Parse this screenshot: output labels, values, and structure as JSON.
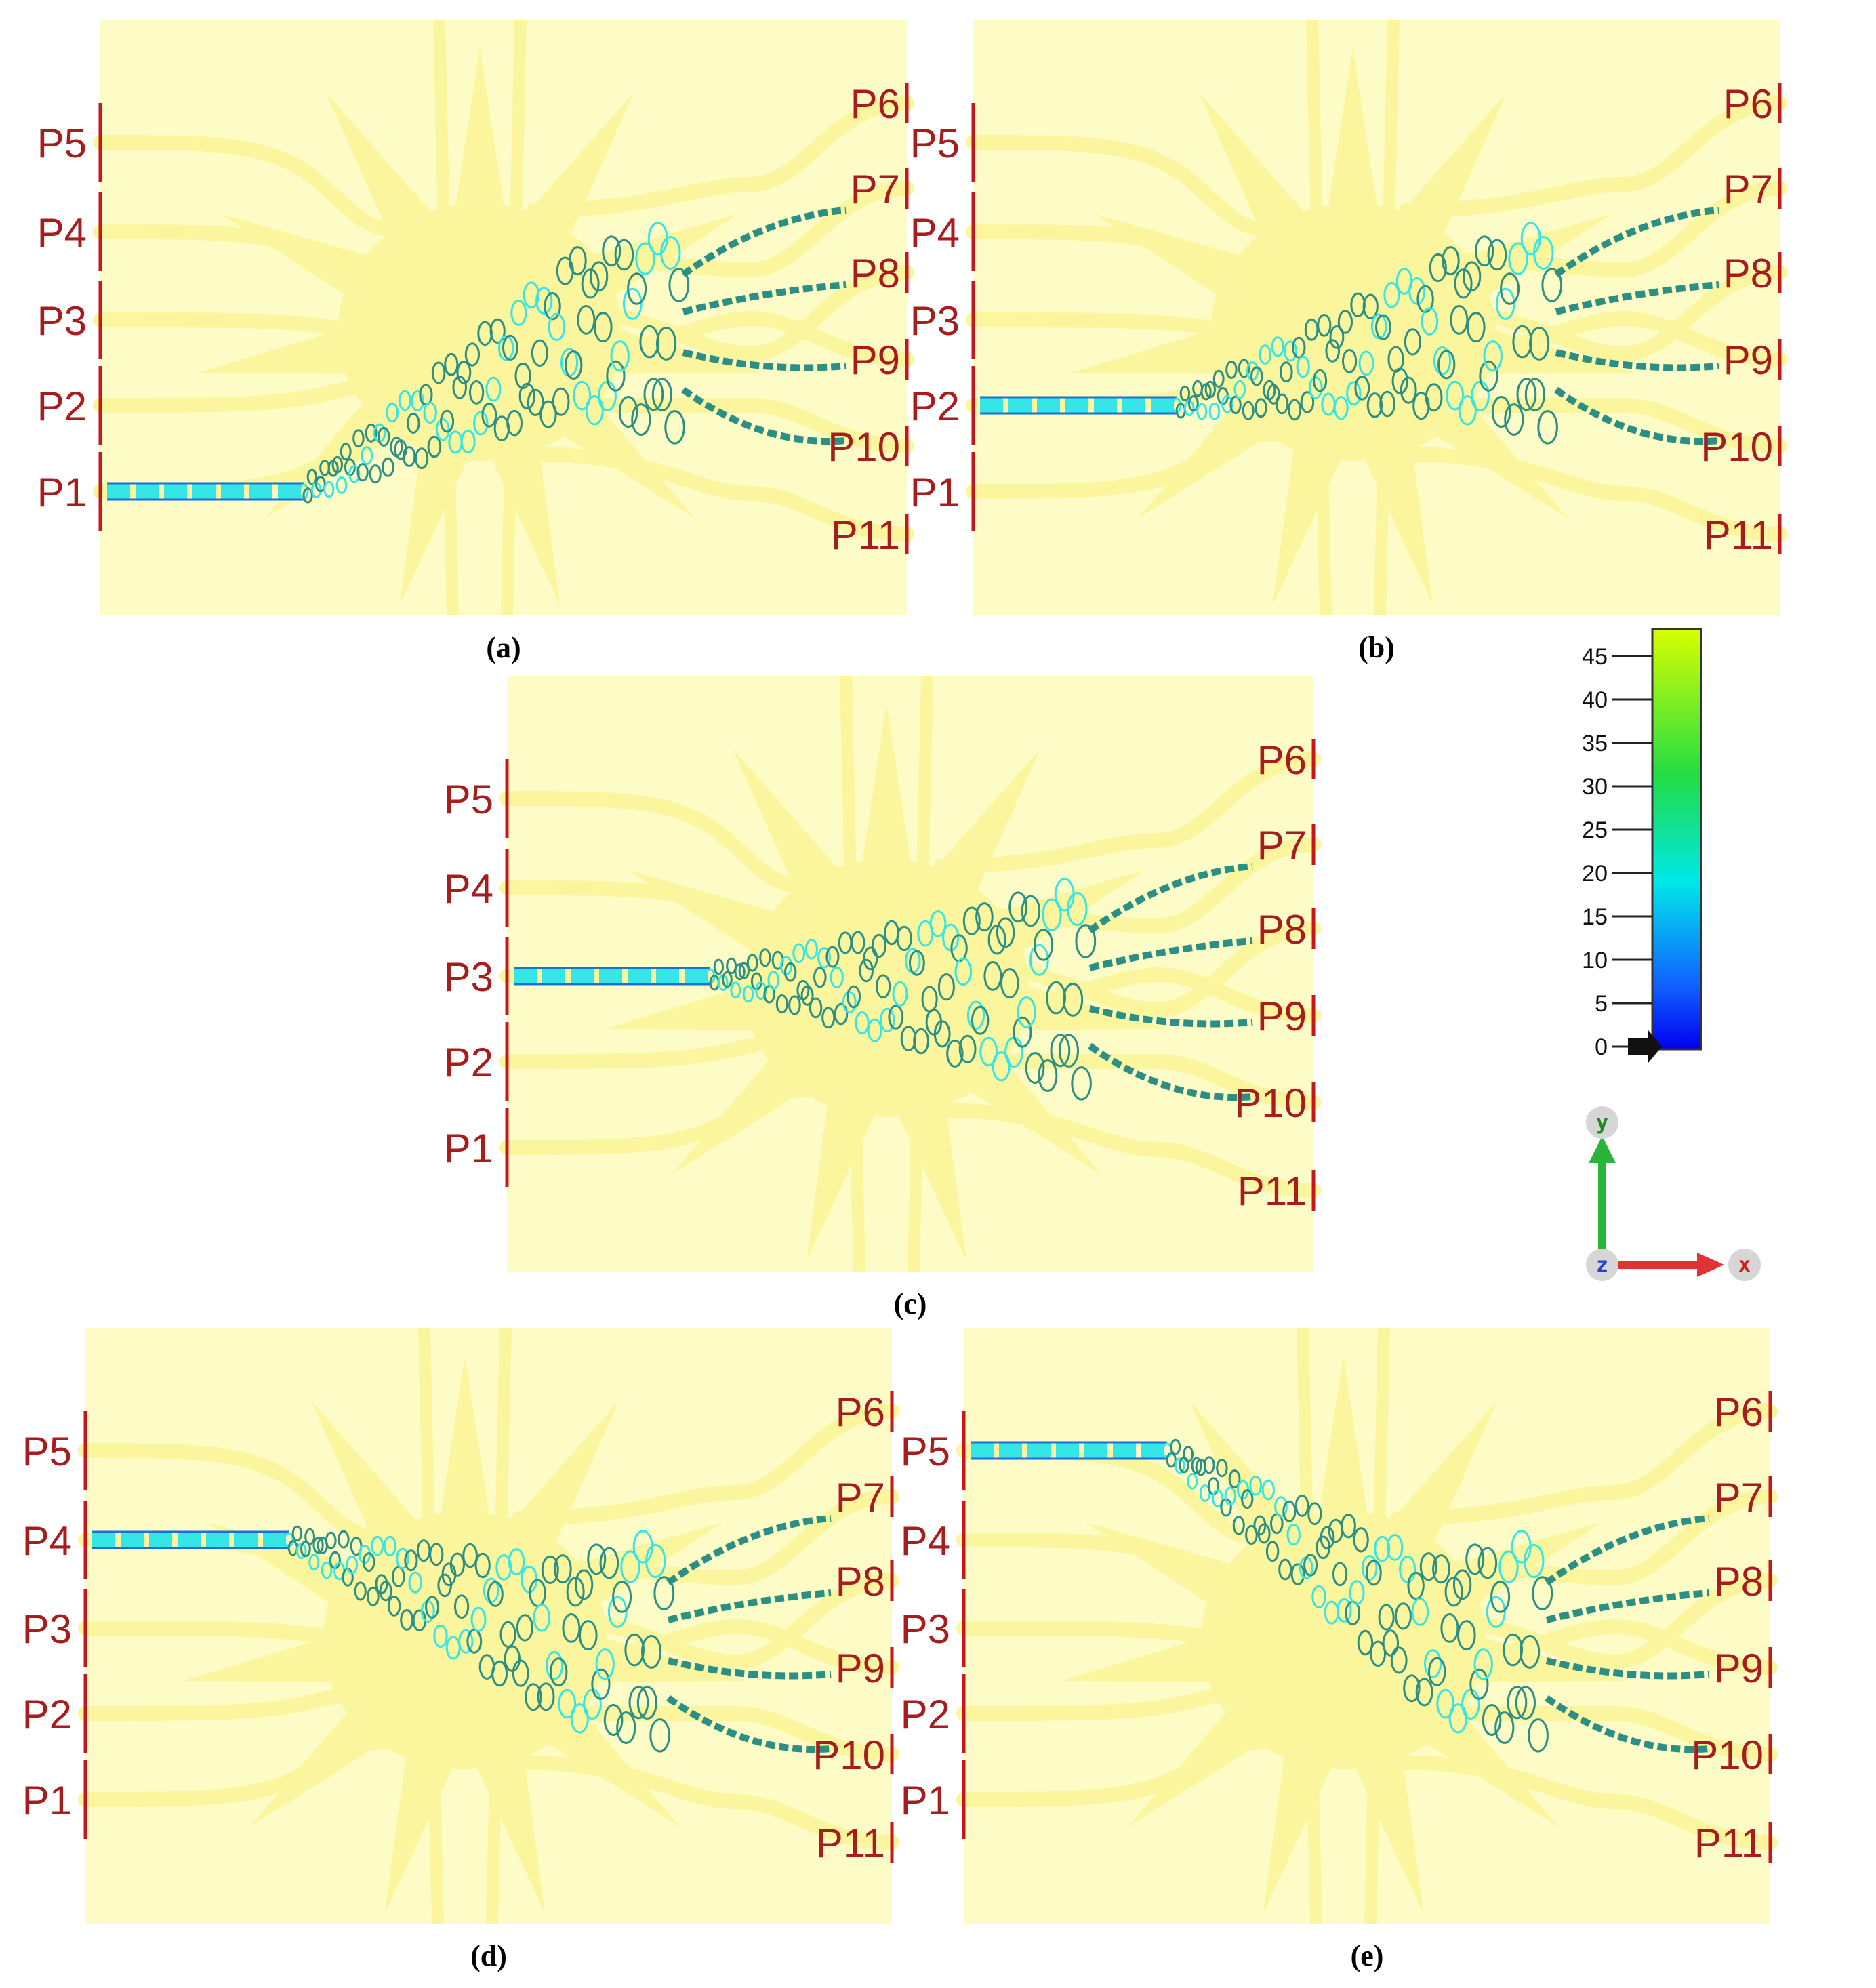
{
  "panels": [
    {
      "caption": "(a)",
      "input_port": "P1"
    },
    {
      "caption": "(b)",
      "input_port": "P2"
    },
    {
      "caption": "(c)",
      "input_port": "P3"
    },
    {
      "caption": "(d)",
      "input_port": "P4"
    },
    {
      "caption": "(e)",
      "input_port": "P5"
    }
  ],
  "ports": {
    "left": [
      "P5",
      "P4",
      "P3",
      "P2",
      "P1"
    ],
    "right": [
      "P6",
      "P7",
      "P8",
      "P9",
      "P10",
      "P11"
    ]
  },
  "colorbar": {
    "ticks": [
      "45",
      "40",
      "35",
      "30",
      "25",
      "20",
      "15",
      "10",
      "5",
      "0"
    ],
    "colors": [
      "#d8ff00",
      "#22dd44",
      "#00e8e8",
      "#1060ff",
      "#0000ee"
    ]
  },
  "axes": {
    "y": "y",
    "x": "x",
    "z": "z"
  },
  "colors": {
    "background": "#fdfcc6",
    "device": "#fbf69e",
    "port_marker": "#c8161d",
    "field_cyan": "#36e6e6",
    "field_teal": "#2b8f83"
  }
}
